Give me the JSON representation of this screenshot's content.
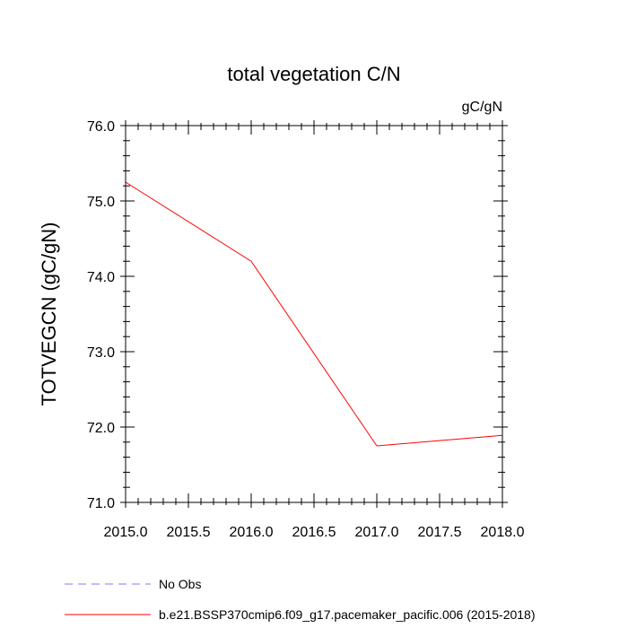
{
  "chart_data": {
    "type": "line",
    "title": "total vegetation C/N",
    "units": "gC/gN",
    "xlabel": "",
    "ylabel": "TOTVEGCN  (gC/gN)",
    "xlim": [
      2015.0,
      2018.0
    ],
    "ylim": [
      71.0,
      76.0
    ],
    "x_ticks": [
      2015.0,
      2015.5,
      2016.0,
      2016.5,
      2017.0,
      2017.5,
      2018.0
    ],
    "x_tick_labels": [
      "2015.0",
      "2015.5",
      "2016.0",
      "2016.5",
      "2017.0",
      "2017.5",
      "2018.0"
    ],
    "y_ticks": [
      71.0,
      72.0,
      73.0,
      74.0,
      75.0,
      76.0
    ],
    "y_tick_labels": [
      "71.0",
      "72.0",
      "73.0",
      "74.0",
      "75.0",
      "76.0"
    ],
    "grid": false,
    "legend_position": "bottom",
    "series": [
      {
        "name": "b.e21.BSSP370cmip6.f09_g17.pacemaker_pacific.006 (2015-2018)",
        "color": "#ff0000",
        "line_style": "solid",
        "x": [
          2015.0,
          2016.0,
          2017.0,
          2018.0
        ],
        "values": [
          75.25,
          74.2,
          71.75,
          71.89
        ]
      }
    ],
    "legend": [
      {
        "label": "No Obs",
        "color": "#7b7bff",
        "line_style": "dashed"
      },
      {
        "label": "b.e21.BSSP370cmip6.f09_g17.pacemaker_pacific.006 (2015-2018)",
        "color": "#ff0000",
        "line_style": "solid"
      }
    ]
  }
}
